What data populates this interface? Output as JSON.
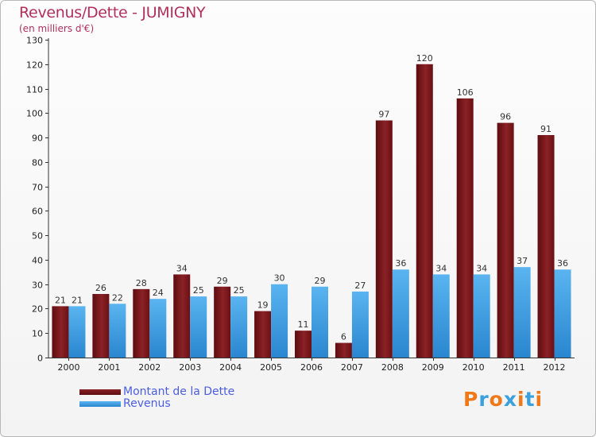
{
  "title": "Revenus/Dette - JUMIGNY",
  "subtitle": "(en milliers d'€)",
  "legend": {
    "debt_label": "Montant de la Dette",
    "revenue_label": "Revenus"
  },
  "logo": {
    "text": "Proxiti"
  },
  "colors": {
    "debt": "#7a1418",
    "revenue": "#3c9ae0",
    "title": "#b0305a",
    "legend_text": "#4b5ee0",
    "logo_letters": [
      "#f07818",
      "#3aa0de",
      "#f07818",
      "#3aa0de",
      "#f07818",
      "#3aa0de",
      "#f07818"
    ]
  },
  "chart_data": {
    "type": "bar",
    "title": "Revenus/Dette - JUMIGNY",
    "subtitle": "(en milliers d'€)",
    "categories": [
      "2000",
      "2001",
      "2002",
      "2003",
      "2004",
      "2005",
      "2006",
      "2007",
      "2008",
      "2009",
      "2010",
      "2011",
      "2012"
    ],
    "series": [
      {
        "name": "Montant de la Dette",
        "values": [
          21,
          26,
          28,
          34,
          29,
          19,
          11,
          6,
          97,
          120,
          106,
          96,
          91
        ]
      },
      {
        "name": "Revenus",
        "values": [
          21,
          22,
          24,
          25,
          25,
          30,
          29,
          27,
          36,
          34,
          34,
          37,
          36
        ]
      }
    ],
    "ylim": [
      0,
      130
    ],
    "yticks": [
      0,
      10,
      20,
      30,
      40,
      50,
      60,
      70,
      80,
      90,
      100,
      110,
      120,
      130
    ],
    "grid": false,
    "data_labels": true,
    "legend_position": "bottom-left"
  }
}
